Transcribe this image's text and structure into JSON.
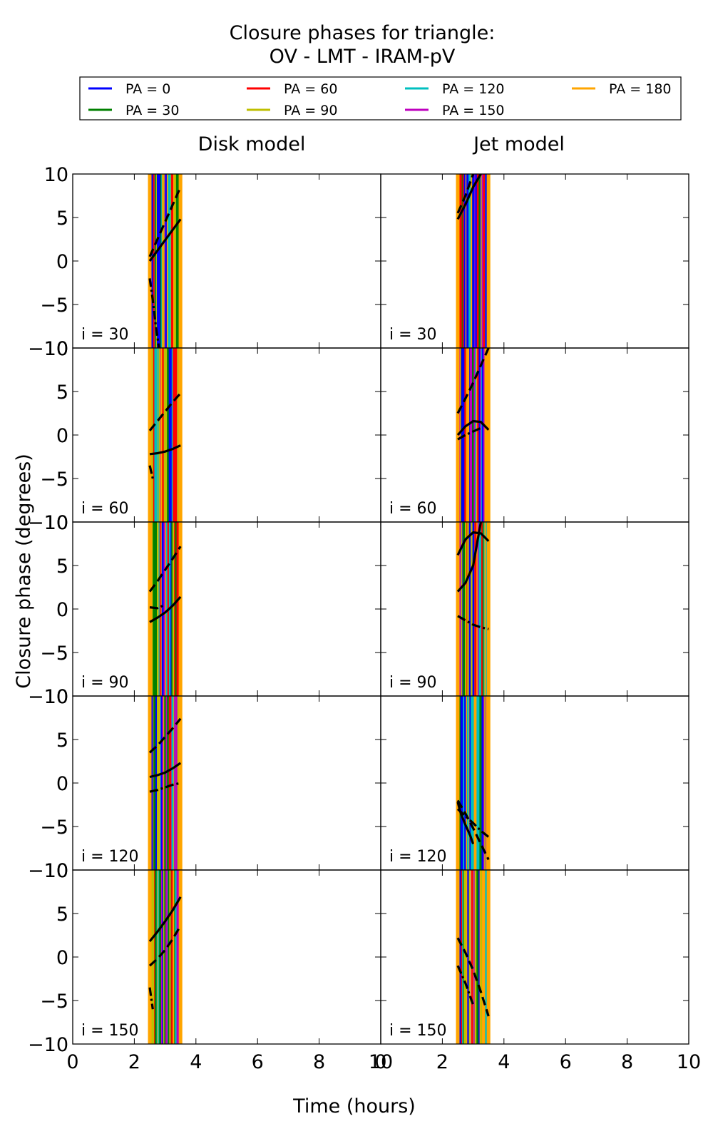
{
  "title_lines": [
    "Closure phases for triangle:",
    "OV - LMT - IRAM-pV"
  ],
  "legend": [
    {
      "label": "PA = 0",
      "color": "#0000ff"
    },
    {
      "label": "PA = 30",
      "color": "#008000"
    },
    {
      "label": "PA = 60",
      "color": "#ff0000"
    },
    {
      "label": "PA = 90",
      "color": "#bfbf00"
    },
    {
      "label": "PA = 120",
      "color": "#00bfbf"
    },
    {
      "label": "PA = 150",
      "color": "#bf00bf"
    },
    {
      "label": "PA = 180",
      "color": "#ffa500"
    }
  ],
  "column_titles": [
    "Disk model",
    "Jet model"
  ],
  "xlabel": "Time (hours)",
  "ylabel": "Closure phase (degrees)",
  "panel_labels": [
    "i = 30",
    "i = 60",
    "i = 90",
    "i = 120",
    "i = 150"
  ],
  "chart_data": {
    "type": "line",
    "xlim": [
      0,
      10
    ],
    "ylim": [
      -10,
      10
    ],
    "xticks": [
      0,
      2,
      4,
      6,
      8,
      10
    ],
    "yticks": [
      -10,
      -5,
      0,
      5,
      10
    ],
    "grid": false,
    "legend_position": "top",
    "observation_window_hours": [
      2.5,
      3.5
    ],
    "panels": [
      {
        "model": "Disk model",
        "inclination": "i = 30",
        "curves": [
          {
            "style": "solid",
            "x": [
              2.5,
              2.75,
              3.0,
              3.25,
              3.5
            ],
            "y": [
              0.0,
              1.2,
              2.4,
              3.6,
              4.8
            ]
          },
          {
            "style": "dashed",
            "x": [
              2.5,
              2.75,
              3.0,
              3.25,
              3.5
            ],
            "y": [
              0.5,
              2.5,
              4.5,
              6.5,
              8.5
            ]
          },
          {
            "style": "dashdot",
            "x": [
              2.5,
              2.6,
              2.7,
              2.8
            ],
            "y": [
              -2.0,
              -4.5,
              -7.5,
              -10.0
            ]
          }
        ]
      },
      {
        "model": "Jet model",
        "inclination": "i = 30",
        "curves": [
          {
            "style": "solid",
            "x": [
              2.5,
              2.75,
              3.0,
              3.25
            ],
            "y": [
              4.8,
              6.5,
              8.5,
              10.0
            ]
          },
          {
            "style": "dashed",
            "x": [
              2.5,
              2.75,
              3.0
            ],
            "y": [
              5.5,
              7.5,
              10.0
            ]
          }
        ]
      },
      {
        "model": "Disk model",
        "inclination": "i = 60",
        "curves": [
          {
            "style": "solid",
            "x": [
              2.5,
              2.75,
              3.0,
              3.25,
              3.5
            ],
            "y": [
              -2.2,
              -2.1,
              -1.9,
              -1.6,
              -1.2
            ]
          },
          {
            "style": "dashed",
            "x": [
              2.5,
              2.75,
              3.0,
              3.25,
              3.5
            ],
            "y": [
              0.5,
              1.6,
              2.7,
              3.8,
              4.8
            ]
          },
          {
            "style": "dashdot",
            "x": [
              2.5,
              2.6
            ],
            "y": [
              -3.5,
              -5.0
            ]
          }
        ]
      },
      {
        "model": "Jet model",
        "inclination": "i = 60",
        "curves": [
          {
            "style": "solid",
            "x": [
              2.5,
              2.75,
              3.0,
              3.25,
              3.5
            ],
            "y": [
              0.0,
              1.0,
              1.6,
              1.5,
              0.6
            ]
          },
          {
            "style": "dashed",
            "x": [
              2.5,
              2.75,
              3.0,
              3.25,
              3.5
            ],
            "y": [
              2.5,
              4.2,
              6.0,
              8.0,
              10.0
            ]
          },
          {
            "style": "dashdot",
            "x": [
              2.5,
              2.75,
              3.0,
              3.25
            ],
            "y": [
              -0.5,
              0.0,
              0.4,
              0.8
            ]
          }
        ]
      },
      {
        "model": "Disk model",
        "inclination": "i = 90",
        "curves": [
          {
            "style": "solid",
            "x": [
              2.5,
              2.75,
              3.0,
              3.25,
              3.5
            ],
            "y": [
              -1.5,
              -1.0,
              -0.4,
              0.4,
              1.4
            ]
          },
          {
            "style": "dashed",
            "x": [
              2.5,
              2.75,
              3.0,
              3.25,
              3.5
            ],
            "y": [
              2.0,
              3.2,
              4.5,
              5.8,
              7.2
            ]
          },
          {
            "style": "dashdot",
            "x": [
              2.5,
              2.75,
              3.0
            ],
            "y": [
              0.2,
              0.1,
              0.5
            ]
          }
        ]
      },
      {
        "model": "Jet model",
        "inclination": "i = 90",
        "curves": [
          {
            "style": "solid",
            "x": [
              2.5,
              2.75,
              3.0,
              3.25,
              3.5
            ],
            "y": [
              6.2,
              8.0,
              8.8,
              8.7,
              7.8
            ]
          },
          {
            "style": "solid",
            "x": [
              2.5,
              2.75,
              3.0,
              3.25
            ],
            "y": [
              2.0,
              3.0,
              5.0,
              10.0
            ]
          },
          {
            "style": "dashdot",
            "x": [
              2.5,
              2.75,
              3.0,
              3.25,
              3.5
            ],
            "y": [
              -0.8,
              -1.3,
              -1.8,
              -2.1,
              -2.3
            ]
          }
        ]
      },
      {
        "model": "Disk model",
        "inclination": "i = 120",
        "curves": [
          {
            "style": "solid",
            "x": [
              2.5,
              2.75,
              3.0,
              3.25,
              3.5
            ],
            "y": [
              0.7,
              0.9,
              1.2,
              1.7,
              2.3
            ]
          },
          {
            "style": "dashed",
            "x": [
              2.5,
              2.75,
              3.0,
              3.25,
              3.5
            ],
            "y": [
              3.5,
              4.3,
              5.3,
              6.3,
              7.4
            ]
          },
          {
            "style": "dashdot",
            "x": [
              2.5,
              2.75,
              3.0,
              3.25,
              3.5
            ],
            "y": [
              -1.0,
              -0.8,
              -0.5,
              -0.2,
              0.0
            ]
          }
        ]
      },
      {
        "model": "Jet model",
        "inclination": "i = 120",
        "curves": [
          {
            "style": "solid",
            "x": [
              2.5,
              2.6,
              2.75,
              2.9,
              3.0
            ],
            "y": [
              -2.2,
              -3.5,
              -4.8,
              -6.0,
              -7.0
            ]
          },
          {
            "style": "dashed",
            "x": [
              2.5,
              2.75,
              3.0,
              3.25,
              3.5
            ],
            "y": [
              -2.0,
              -3.5,
              -5.2,
              -7.0,
              -8.8
            ]
          },
          {
            "style": "dashdot",
            "x": [
              2.5,
              2.75,
              3.0,
              3.25,
              3.5
            ],
            "y": [
              -3.0,
              -3.8,
              -4.6,
              -5.5,
              -6.2
            ]
          }
        ]
      },
      {
        "model": "Disk model",
        "inclination": "i = 150",
        "curves": [
          {
            "style": "solid",
            "x": [
              2.5,
              2.75,
              3.0,
              3.25,
              3.5
            ],
            "y": [
              1.8,
              2.9,
              4.1,
              5.4,
              6.9
            ]
          },
          {
            "style": "dashed",
            "x": [
              2.5,
              2.75,
              3.0,
              3.25,
              3.5
            ],
            "y": [
              -1.0,
              -0.2,
              0.8,
              2.1,
              3.6
            ]
          },
          {
            "style": "dashdot",
            "x": [
              2.5,
              2.6
            ],
            "y": [
              -3.5,
              -6.0
            ]
          }
        ]
      },
      {
        "model": "Jet model",
        "inclination": "i = 150",
        "curves": [
          {
            "style": "dashed",
            "x": [
              2.5,
              2.75,
              3.0,
              3.25,
              3.5
            ],
            "y": [
              2.2,
              0.5,
              -1.5,
              -4.0,
              -6.8
            ]
          },
          {
            "style": "dashdot",
            "x": [
              2.5,
              2.75,
              3.0
            ],
            "y": [
              -1.0,
              -3.0,
              -5.5
            ]
          }
        ]
      }
    ]
  }
}
